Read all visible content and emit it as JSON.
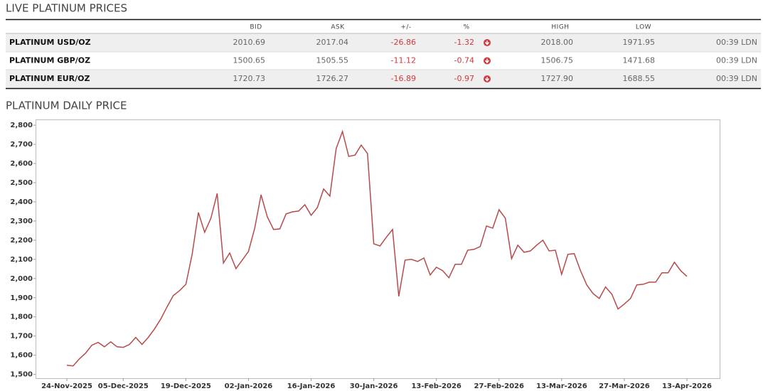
{
  "header": {
    "title": "LIVE PLATINUM PRICES"
  },
  "table": {
    "columns": [
      "BID",
      "ASK",
      "+/-",
      "%",
      "HIGH",
      "LOW"
    ],
    "rows": [
      [
        "PLATINUM USD/OZ",
        "2010.69",
        "2017.04",
        "-26.86",
        "-1.32",
        "2018.00",
        "1971.95",
        "00:39 LDN"
      ],
      [
        "PLATINUM GBP/OZ",
        "1500.65",
        "1505.55",
        "-11.12",
        "-0.74",
        "1506.75",
        "1471.68",
        "00:39 LDN"
      ],
      [
        "PLATINUM EUR/OZ",
        "1720.73",
        "1726.27",
        "-16.89",
        "-0.97",
        "1727.90",
        "1688.55",
        "00:39 LDN"
      ]
    ]
  },
  "chart_data": {
    "type": "line",
    "title": "PLATINUM DAILY PRICE",
    "categories": [
      "24-Nov-2025",
      null,
      null,
      null,
      null,
      null,
      null,
      null,
      null,
      "05-Dec-2025",
      null,
      null,
      null,
      null,
      null,
      null,
      null,
      null,
      null,
      "19-Dec-2025",
      null,
      null,
      null,
      null,
      null,
      null,
      null,
      null,
      null,
      "02-Jan-2026",
      null,
      null,
      null,
      null,
      null,
      null,
      null,
      null,
      null,
      "16-Jan-2026",
      null,
      null,
      null,
      null,
      null,
      null,
      null,
      null,
      null,
      "30-Jan-2026",
      null,
      null,
      null,
      null,
      null,
      null,
      null,
      null,
      null,
      "13-Feb-2026",
      null,
      null,
      null,
      null,
      null,
      null,
      null,
      null,
      null,
      "27-Feb-2026",
      null,
      null,
      null,
      null,
      null,
      null,
      null,
      null,
      null,
      "13-Mar-2026",
      null,
      null,
      null,
      null,
      null,
      null,
      null,
      null,
      null,
      "27-Mar-2026",
      null,
      null,
      null,
      null,
      null,
      null,
      null,
      null,
      null,
      "13-Apr-2026"
    ],
    "series": [
      {
        "color": "#b84a4b",
        "values": [
          1548,
          1544,
          1581,
          1611,
          1652,
          1667,
          1644,
          1670,
          1644,
          1641,
          1656,
          1693,
          1656,
          1693,
          1737,
          1789,
          1852,
          1911,
          1937,
          1970,
          2126,
          2344,
          2241,
          2315,
          2444,
          2081,
          2133,
          2052,
          2096,
          2141,
          2263,
          2437,
          2322,
          2256,
          2259,
          2337,
          2348,
          2352,
          2385,
          2330,
          2370,
          2467,
          2430,
          2678,
          2767,
          2637,
          2644,
          2696,
          2652,
          2181,
          2170,
          2215,
          2256,
          1907,
          2096,
          2100,
          2089,
          2107,
          2019,
          2059,
          2041,
          2004,
          2074,
          2074,
          2148,
          2152,
          2167,
          2274,
          2263,
          2359,
          2315,
          2104,
          2174,
          2137,
          2144,
          2174,
          2200,
          2144,
          2148,
          2022,
          2126,
          2130,
          2041,
          1967,
          1922,
          1896,
          1956,
          1919,
          1841,
          1867,
          1896,
          1967,
          1970,
          1981,
          1981,
          2030,
          2030,
          2085,
          2041,
          2011
        ]
      }
    ],
    "ylim": [
      1480,
      2830
    ],
    "yticks": [
      {
        "value": 1500,
        "label": "1,500"
      },
      {
        "value": 1600,
        "label": "1,600"
      },
      {
        "value": 1700,
        "label": "1,700"
      },
      {
        "value": 1800,
        "label": "1,800"
      },
      {
        "value": 1900,
        "label": "1,900"
      },
      {
        "value": 2000,
        "label": "2,000"
      },
      {
        "value": 2100,
        "label": "2,100"
      },
      {
        "value": 2200,
        "label": "2,200"
      },
      {
        "value": 2300,
        "label": "2,300"
      },
      {
        "value": 2400,
        "label": "2,400"
      },
      {
        "value": 2500,
        "label": "2,500"
      },
      {
        "value": 2600,
        "label": "2,600"
      },
      {
        "value": 2700,
        "label": "2,700"
      },
      {
        "value": 2800,
        "label": "2,800"
      }
    ],
    "grid": false
  }
}
